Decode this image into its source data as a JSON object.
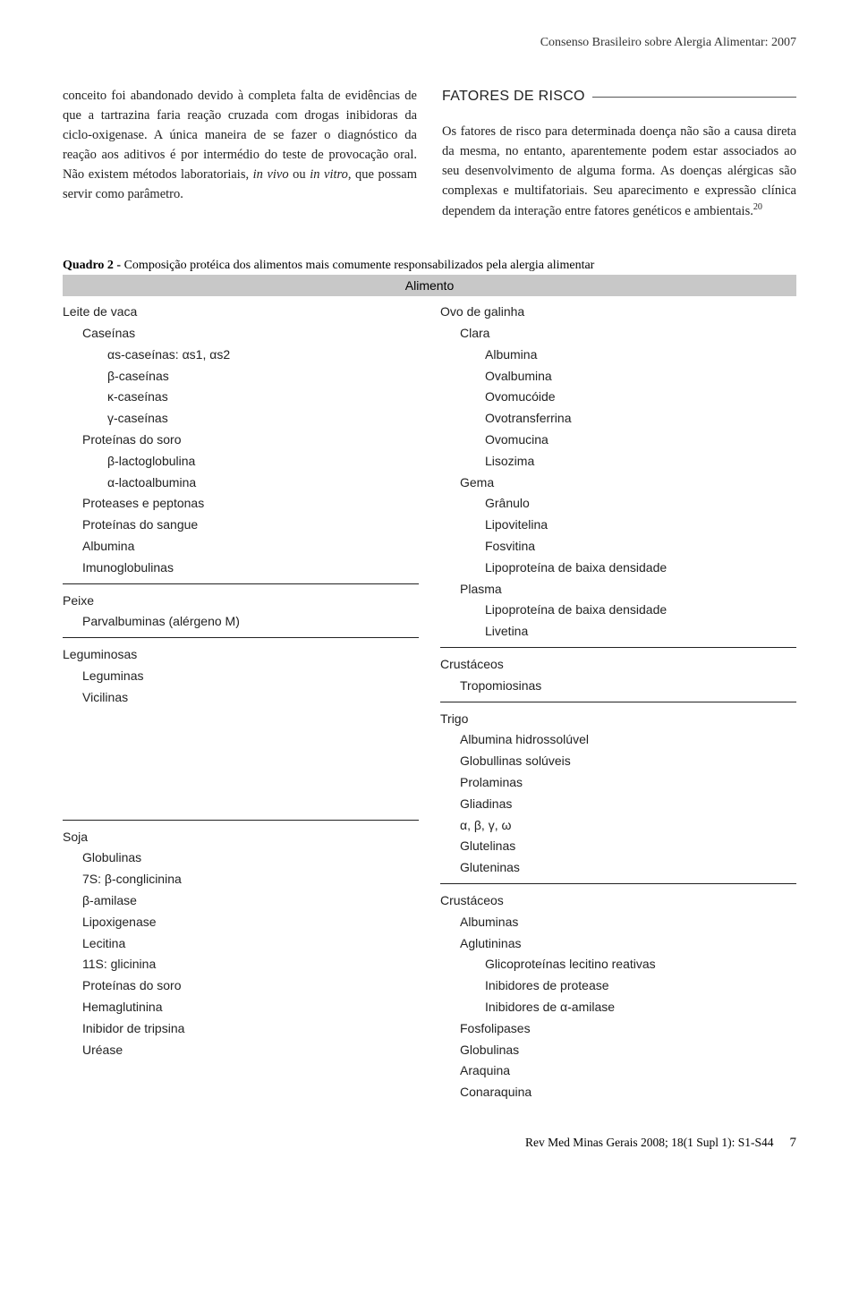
{
  "running_head": "Consenso Brasileiro sobre Alergia Alimentar: 2007",
  "left_para": "conceito foi abandonado devido à completa falta de evidências de que a tartrazina faria reação cruzada com drogas inibidoras da ciclo-oxigenase. A única maneira de se fazer o diagnóstico da reação aos aditivos é por intermédio do teste de provocação oral. Não existem métodos laboratoriais, ",
  "left_para_em": "in vivo",
  "left_para_mid": " ou ",
  "left_para_em2": "in vitro",
  "left_para_end": ", que possam servir como parâmetro.",
  "right_heading": "FATORES DE RISCO",
  "right_para": "Os fatores de risco para determinada doença não são a causa direta da mesma, no entanto, aparentemente podem estar associados ao seu desenvolvimento de alguma forma. As doenças alérgicas são complexas e multifatoriais. Seu aparecimento e expressão clínica dependem da interação entre fatores genéticos e ambientais.",
  "right_cite": "20",
  "quadro_label": "Quadro 2 - ",
  "quadro_title": "Composição protéica dos alimentos mais comumente responsabilizados pela alergia alimentar",
  "quadro_header": "Alimento",
  "left_blocks": [
    {
      "sep": false,
      "lines": [
        {
          "t": "Leite de vaca",
          "i": 0
        },
        {
          "t": "Caseínas",
          "i": 1
        },
        {
          "t": "αs-caseínas: αs1, αs2",
          "i": 2
        },
        {
          "t": "β-caseínas",
          "i": 2
        },
        {
          "t": "κ-caseínas",
          "i": 2
        },
        {
          "t": "γ-caseínas",
          "i": 2
        },
        {
          "t": "Proteínas do soro",
          "i": 1
        },
        {
          "t": "β-lactoglobulina",
          "i": 2
        },
        {
          "t": "α-lactoalbumina",
          "i": 2
        },
        {
          "t": "Proteases e peptonas",
          "i": 1
        },
        {
          "t": "Proteínas do sangue",
          "i": 1
        },
        {
          "t": "Albumina",
          "i": 1
        },
        {
          "t": "Imunoglobulinas",
          "i": 1
        }
      ]
    },
    {
      "sep": true,
      "lines": [
        {
          "t": "Peixe",
          "i": 0
        },
        {
          "t": "Parvalbuminas (alérgeno M)",
          "i": 1
        }
      ]
    },
    {
      "sep": true,
      "lines": [
        {
          "t": "Leguminosas",
          "i": 0
        },
        {
          "t": "Leguminas",
          "i": 1
        },
        {
          "t": "Vicilinas",
          "i": 1
        }
      ]
    },
    {
      "sep": true,
      "pad": 5,
      "lines": [
        {
          "t": "Soja",
          "i": 0
        },
        {
          "t": "Globulinas",
          "i": 1
        },
        {
          "t": "7S: β-conglicinina",
          "i": 1
        },
        {
          "t": " β-amilase",
          "i": 1
        },
        {
          "t": "Lipoxigenase",
          "i": 1
        },
        {
          "t": "Lecitina",
          "i": 1
        },
        {
          "t": "11S: glicinina",
          "i": 1
        },
        {
          "t": "Proteínas do soro",
          "i": 1
        },
        {
          "t": "Hemaglutinina",
          "i": 1
        },
        {
          "t": "Inibidor de tripsina",
          "i": 1
        },
        {
          "t": "Uréase",
          "i": 1
        }
      ]
    }
  ],
  "right_blocks": [
    {
      "sep": false,
      "lines": [
        {
          "t": "Ovo de galinha",
          "i": 0
        },
        {
          "t": "Clara",
          "i": 1
        },
        {
          "t": "Albumina",
          "i": 2
        },
        {
          "t": "Ovalbumina",
          "i": 2
        },
        {
          "t": "Ovomucóide",
          "i": 2
        },
        {
          "t": "Ovotransferrina",
          "i": 2
        },
        {
          "t": "Ovomucina",
          "i": 2
        },
        {
          "t": "Lisozima",
          "i": 2
        },
        {
          "t": "Gema",
          "i": 1
        },
        {
          "t": "Grânulo",
          "i": 2
        },
        {
          "t": "Lipovitelina",
          "i": 2
        },
        {
          "t": "Fosvitina",
          "i": 2
        },
        {
          "t": "Lipoproteína de baixa densidade",
          "i": 2
        },
        {
          "t": "Plasma",
          "i": 1
        },
        {
          "t": "Lipoproteína de baixa densidade",
          "i": 2
        },
        {
          "t": "Livetina",
          "i": 2
        }
      ]
    },
    {
      "sep": true,
      "lines": [
        {
          "t": "Crustáceos",
          "i": 0
        },
        {
          "t": "Tropomiosinas",
          "i": 1
        }
      ]
    },
    {
      "sep": true,
      "lines": [
        {
          "t": "Trigo",
          "i": 0
        },
        {
          "t": "Albumina hidrossolúvel",
          "i": 1
        },
        {
          "t": "Globullinas solúveis",
          "i": 1
        },
        {
          "t": "Prolaminas",
          "i": 1
        },
        {
          "t": "Gliadinas",
          "i": 1
        },
        {
          "t": "α, β, γ, ω",
          "i": 1
        },
        {
          "t": "Glutelinas",
          "i": 1
        },
        {
          "t": "Gluteninas",
          "i": 1
        }
      ]
    },
    {
      "sep": true,
      "lines": [
        {
          "t": "Crustáceos",
          "i": 0
        },
        {
          "t": "Albuminas",
          "i": 1
        },
        {
          "t": "Aglutininas",
          "i": 1
        },
        {
          "t": "Glicoproteínas lecitino reativas",
          "i": 2
        },
        {
          "t": "Inibidores de protease",
          "i": 2
        },
        {
          "t": "Inibidores de α-amilase",
          "i": 2
        },
        {
          "t": "Fosfolipases",
          "i": 1
        },
        {
          "t": "Globulinas",
          "i": 1
        },
        {
          "t": "Araquina",
          "i": 1
        },
        {
          "t": "Conaraquina",
          "i": 1
        }
      ]
    }
  ],
  "footer_cite": "Rev Med Minas Gerais 2008; 18(1 Supl 1): S1-S44",
  "page_number": "7"
}
